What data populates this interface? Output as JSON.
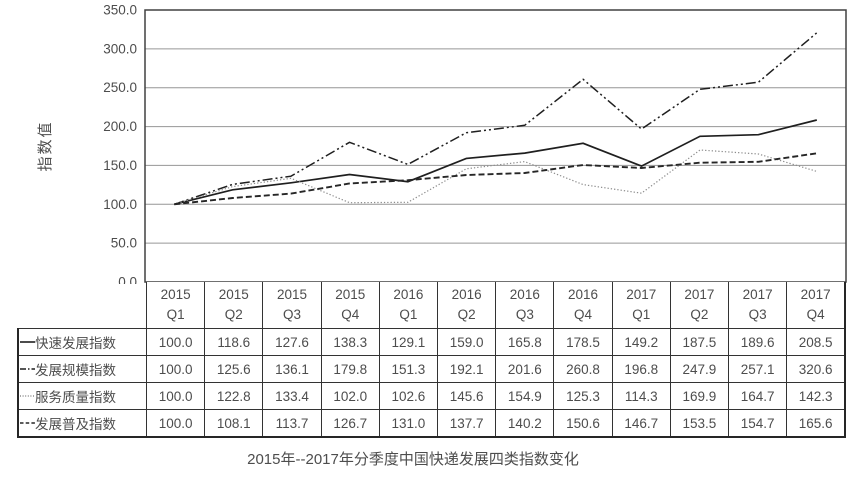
{
  "chart_data": {
    "type": "line",
    "title": "2015年--2017年分季度中国快递发展四类指数变化",
    "xlabel": "",
    "ylabel": "指数值",
    "ylim": [
      0,
      350
    ],
    "ytick_step": 50,
    "ytick_labels": [
      "0.0",
      "50.0",
      "100.0",
      "150.0",
      "200.0",
      "250.0",
      "300.0",
      "350.0"
    ],
    "grid": true,
    "legend_position": "table-row-headers",
    "categories": [
      "2015 Q1",
      "2015 Q2",
      "2015 Q3",
      "2015 Q4",
      "2016 Q1",
      "2016 Q2",
      "2016 Q3",
      "2016 Q4",
      "2017 Q1",
      "2017 Q2",
      "2017 Q3",
      "2017 Q4"
    ],
    "series": [
      {
        "name": "快速发展指数",
        "line_style": "solid",
        "color": "#1f1f1f",
        "values": [
          100.0,
          118.6,
          127.6,
          138.3,
          129.1,
          159.0,
          165.8,
          178.5,
          149.2,
          187.5,
          189.6,
          208.5
        ]
      },
      {
        "name": "发展规模指数",
        "line_style": "dash-dot-dot",
        "color": "#1f1f1f",
        "values": [
          100.0,
          125.6,
          136.1,
          179.8,
          151.3,
          192.1,
          201.6,
          260.8,
          196.8,
          247.9,
          257.1,
          320.6
        ]
      },
      {
        "name": "服务质量指数",
        "line_style": "dotted",
        "color": "#8c8c8c",
        "values": [
          100.0,
          122.8,
          133.4,
          102.0,
          102.6,
          145.6,
          154.9,
          125.3,
          114.3,
          169.9,
          164.7,
          142.3
        ]
      },
      {
        "name": "发展普及指数",
        "line_style": "dashed",
        "color": "#262626",
        "values": [
          100.0,
          108.1,
          113.7,
          126.7,
          131.0,
          137.7,
          140.2,
          150.6,
          146.7,
          153.5,
          154.7,
          165.6
        ]
      }
    ]
  },
  "style_colors": {
    "text": "#4d4d4d",
    "plot_border": "#404040",
    "gridline": "#969696",
    "table_border": "#333333"
  }
}
